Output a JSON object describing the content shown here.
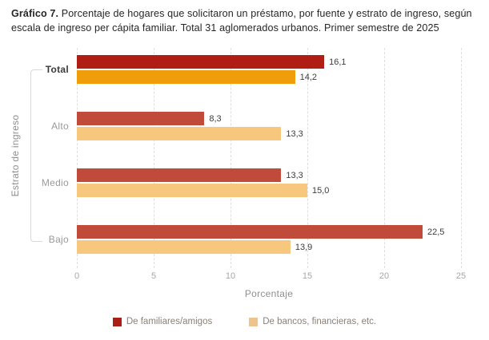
{
  "title": {
    "bold": "Gráfico 7.",
    "rest": " Porcentaje de hogares que solicitaron un préstamo, por fuente y estrato de ingreso, según escala de ingreso per cápita familiar. Total 31 aglomerados urbanos. Primer semestre de 2025"
  },
  "chart_data": {
    "type": "bar",
    "orientation": "horizontal",
    "title": "Gráfico 7. Porcentaje de hogares que solicitaron un préstamo, por fuente y estrato de ingreso, según escala de ingreso per cápita familiar. Total 31 aglomerados urbanos. Primer semestre de 2025",
    "categories": [
      "Total",
      "Alto",
      "Medio",
      "Bajo"
    ],
    "series": [
      {
        "name": "De familiares/amigos",
        "values": [
          16.1,
          8.3,
          13.3,
          22.5
        ],
        "display": [
          "16,1",
          "8,3",
          "13,3",
          "22,5"
        ],
        "colors": [
          "#B01D14",
          "#C04B3A",
          "#C04B3A",
          "#C04B3A"
        ]
      },
      {
        "name": "De bancos, financieras, etc.",
        "values": [
          14.2,
          13.3,
          15.0,
          13.9
        ],
        "display": [
          "14,2",
          "13,3",
          "15,0",
          "13,9"
        ],
        "colors": [
          "#F09D0C",
          "#F6C77D",
          "#F6C77D",
          "#F6C77D"
        ]
      }
    ],
    "xlabel": "Porcentaje",
    "ylabel": "Estrato de ingreso",
    "xlim": [
      0,
      25
    ],
    "xticks": [
      0,
      5,
      10,
      15,
      20,
      25
    ],
    "xtick_labels": [
      "0",
      "5",
      "10",
      "15",
      "20",
      "25"
    ],
    "grid": "vertical-dashed",
    "legend_position": "bottom"
  },
  "legend": {
    "items": [
      {
        "label": "De familiares/amigos",
        "color": "#A91F14"
      },
      {
        "label": "De bancos, financieras, etc.",
        "color": "#EFC48C"
      }
    ]
  }
}
